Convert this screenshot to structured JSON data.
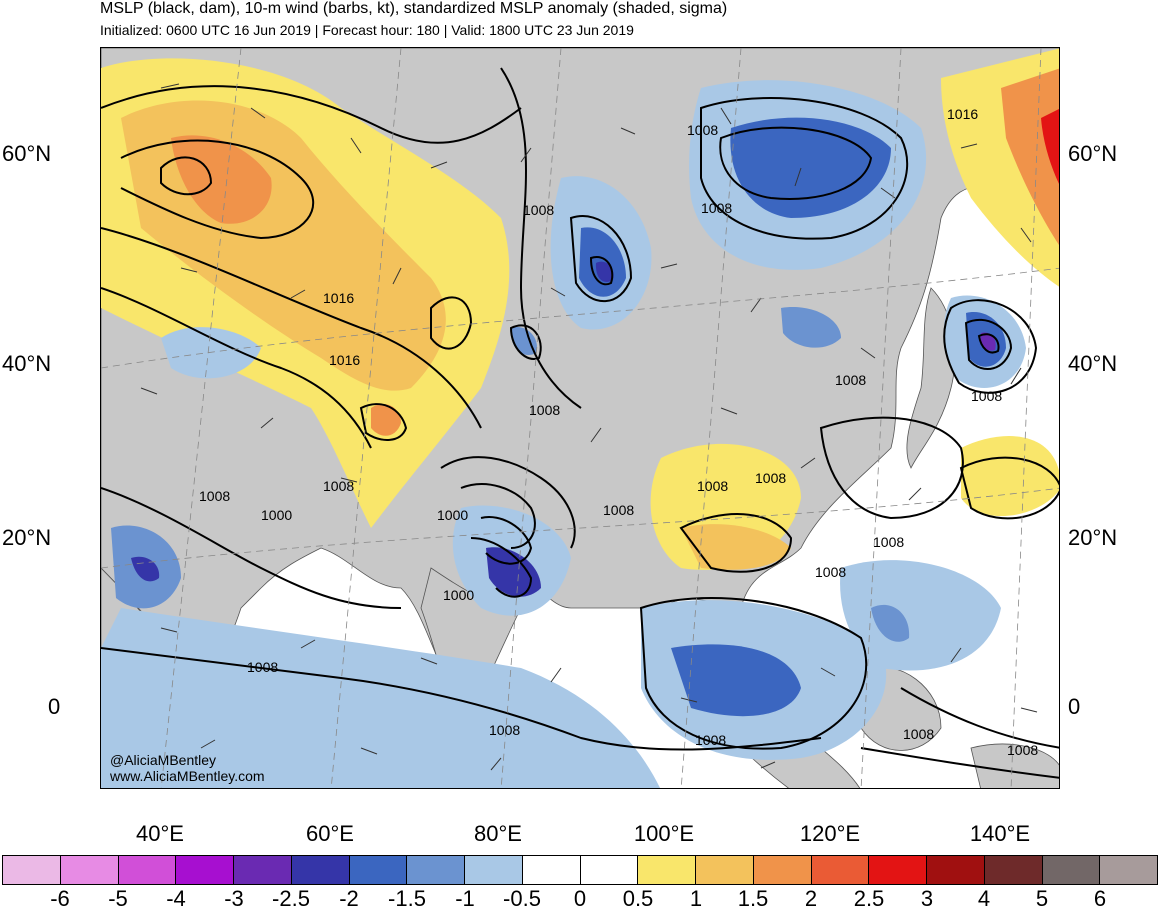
{
  "header": {
    "title": "MSLP (black, dam), 10-m wind (barbs, kt), standardized MSLP anomaly (shaded, sigma)",
    "subtitle": "Initialized: 0600 UTC 16 Jun 2019 | Forecast hour: 180 | Valid: 1800 UTC 23 Jun 2019"
  },
  "axes": {
    "lat_left": [
      "60°N",
      "40°N",
      "20°N",
      "0"
    ],
    "lat_right": [
      "60°N",
      "40°N",
      "20°N",
      "0"
    ],
    "lon": [
      "40°E",
      "60°E",
      "80°E",
      "100°E",
      "120°E",
      "140°E"
    ]
  },
  "contour_labels": [
    "1016",
    "1016",
    "1008",
    "1000",
    "1008",
    "1008",
    "1008",
    "1008",
    "1016",
    "1008",
    "1008",
    "1008",
    "1008",
    "1008",
    "1000",
    "1008",
    "1000",
    "1008",
    "1008",
    "1008",
    "1008",
    "1008",
    "1008",
    "1008"
  ],
  "credits": {
    "handle": "@AliciaMBentley",
    "site": "www.AliciaMBentley.com"
  },
  "colorbar": {
    "labels": [
      "-6",
      "-5",
      "-4",
      "-3",
      "-2.5",
      "-2",
      "-1.5",
      "-1",
      "-0.5",
      "0",
      "0.5",
      "1",
      "1.5",
      "2",
      "2.5",
      "3",
      "4",
      "5",
      "6"
    ],
    "colors": [
      "#ebb9e6",
      "#e78be4",
      "#d14fd8",
      "#a70fd0",
      "#6a2ab2",
      "#3535a8",
      "#3b66c0",
      "#6b93d0",
      "#a9c8e6",
      "#ffffff",
      "#ffffff",
      "#f9e66b",
      "#f3c25c",
      "#f0934a",
      "#ea5b35",
      "#e31414",
      "#a01010",
      "#6e2a2a",
      "#726767",
      "#a79b9b"
    ]
  },
  "colors": {
    "land": "#c8c8c8",
    "coast": "#555555",
    "contour": "#000000"
  }
}
